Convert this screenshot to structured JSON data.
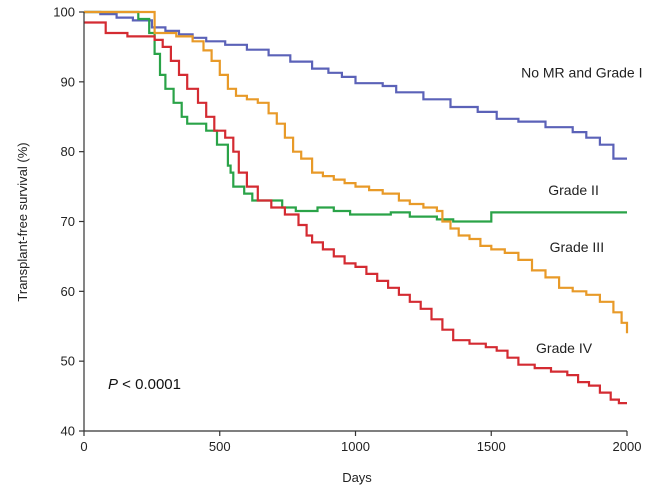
{
  "chart_data": {
    "type": "line",
    "step": true,
    "title": "",
    "xlabel": "Days",
    "ylabel": "Transplant-free survival (%)",
    "xlim": [
      0,
      2000
    ],
    "ylim": [
      40,
      100
    ],
    "xticks": [
      0,
      500,
      1000,
      1500,
      2000
    ],
    "yticks": [
      40,
      50,
      60,
      70,
      80,
      90,
      100
    ],
    "grid": false,
    "legend": "none",
    "annotation": {
      "p_symbol": "P",
      "p_text": " < 0.0001"
    },
    "series": [
      {
        "name": "No MR and Grade I",
        "color": "#5b62b8",
        "label_at": [
          1610,
          90.6
        ],
        "points": [
          [
            0,
            100
          ],
          [
            60,
            99.7
          ],
          [
            120,
            99.2
          ],
          [
            180,
            98.8
          ],
          [
            250,
            97.8
          ],
          [
            300,
            97.3
          ],
          [
            350,
            96.8
          ],
          [
            400,
            96.3
          ],
          [
            450,
            95.8
          ],
          [
            520,
            95.3
          ],
          [
            600,
            94.6
          ],
          [
            680,
            93.8
          ],
          [
            760,
            92.9
          ],
          [
            840,
            91.9
          ],
          [
            900,
            91.3
          ],
          [
            950,
            90.7
          ],
          [
            1000,
            89.8
          ],
          [
            1100,
            89.4
          ],
          [
            1150,
            88.5
          ],
          [
            1250,
            87.5
          ],
          [
            1350,
            86.4
          ],
          [
            1450,
            85.7
          ],
          [
            1520,
            84.7
          ],
          [
            1600,
            84.3
          ],
          [
            1700,
            83.5
          ],
          [
            1800,
            82.8
          ],
          [
            1850,
            82
          ],
          [
            1900,
            81
          ],
          [
            1950,
            79
          ],
          [
            2000,
            79
          ]
        ]
      },
      {
        "name": "Grade II",
        "color": "#2aa348",
        "label_at": [
          1710,
          73.8
        ],
        "points": [
          [
            0,
            100
          ],
          [
            200,
            99
          ],
          [
            240,
            97
          ],
          [
            260,
            94
          ],
          [
            280,
            91
          ],
          [
            300,
            89
          ],
          [
            330,
            87
          ],
          [
            360,
            85
          ],
          [
            380,
            84
          ],
          [
            420,
            84
          ],
          [
            450,
            83
          ],
          [
            490,
            81
          ],
          [
            520,
            81
          ],
          [
            530,
            78
          ],
          [
            540,
            77
          ],
          [
            550,
            75
          ],
          [
            590,
            74
          ],
          [
            620,
            73
          ],
          [
            660,
            73
          ],
          [
            730,
            72
          ],
          [
            780,
            71.5
          ],
          [
            800,
            71.5
          ],
          [
            860,
            72
          ],
          [
            900,
            72
          ],
          [
            920,
            71.5
          ],
          [
            980,
            71
          ],
          [
            1050,
            71
          ],
          [
            1130,
            71.3
          ],
          [
            1200,
            70.7
          ],
          [
            1300,
            70.3
          ],
          [
            1360,
            70
          ],
          [
            1400,
            70
          ],
          [
            1500,
            71.3
          ],
          [
            1580,
            71.3
          ],
          [
            1600,
            71.3
          ],
          [
            1700,
            71.3
          ],
          [
            2000,
            71.3
          ]
        ]
      },
      {
        "name": "Grade III",
        "color": "#e89a28",
        "label_at": [
          1715,
          65.6
        ],
        "points": [
          [
            0,
            100
          ],
          [
            260,
            97
          ],
          [
            340,
            96.5
          ],
          [
            400,
            95.8
          ],
          [
            440,
            94.5
          ],
          [
            470,
            93
          ],
          [
            500,
            91
          ],
          [
            530,
            89
          ],
          [
            560,
            88
          ],
          [
            600,
            87.5
          ],
          [
            640,
            87
          ],
          [
            680,
            85.5
          ],
          [
            710,
            84
          ],
          [
            740,
            82
          ],
          [
            770,
            80
          ],
          [
            800,
            79
          ],
          [
            840,
            77
          ],
          [
            880,
            76.5
          ],
          [
            920,
            76
          ],
          [
            960,
            75.5
          ],
          [
            1000,
            75
          ],
          [
            1050,
            74.5
          ],
          [
            1100,
            74
          ],
          [
            1160,
            73
          ],
          [
            1200,
            72.5
          ],
          [
            1250,
            72
          ],
          [
            1300,
            71.5
          ],
          [
            1320,
            70
          ],
          [
            1350,
            69
          ],
          [
            1380,
            68
          ],
          [
            1420,
            67.5
          ],
          [
            1460,
            66.5
          ],
          [
            1500,
            66
          ],
          [
            1550,
            65.5
          ],
          [
            1600,
            64.5
          ],
          [
            1650,
            63
          ],
          [
            1700,
            62
          ],
          [
            1750,
            60.5
          ],
          [
            1800,
            60
          ],
          [
            1850,
            59.5
          ],
          [
            1900,
            58.5
          ],
          [
            1950,
            57
          ],
          [
            1980,
            55.5
          ],
          [
            2000,
            54
          ]
        ]
      },
      {
        "name": "Grade IV",
        "color": "#d42b32",
        "label_at": [
          1665,
          51.2
        ],
        "points": [
          [
            0,
            98.5
          ],
          [
            80,
            97
          ],
          [
            160,
            96.5
          ],
          [
            260,
            96
          ],
          [
            290,
            95
          ],
          [
            320,
            93
          ],
          [
            350,
            91
          ],
          [
            380,
            89
          ],
          [
            420,
            87
          ],
          [
            450,
            85
          ],
          [
            480,
            83
          ],
          [
            520,
            82
          ],
          [
            550,
            80
          ],
          [
            570,
            77
          ],
          [
            600,
            75
          ],
          [
            640,
            73
          ],
          [
            690,
            72
          ],
          [
            740,
            71
          ],
          [
            790,
            69.5
          ],
          [
            820,
            68
          ],
          [
            840,
            67
          ],
          [
            880,
            66
          ],
          [
            920,
            65
          ],
          [
            960,
            64
          ],
          [
            1000,
            63.5
          ],
          [
            1040,
            62.5
          ],
          [
            1080,
            61.5
          ],
          [
            1120,
            60.5
          ],
          [
            1160,
            59.5
          ],
          [
            1200,
            58.5
          ],
          [
            1240,
            57.5
          ],
          [
            1280,
            56
          ],
          [
            1320,
            54.5
          ],
          [
            1360,
            53
          ],
          [
            1420,
            52.5
          ],
          [
            1480,
            52
          ],
          [
            1520,
            51.5
          ],
          [
            1560,
            50.5
          ],
          [
            1600,
            49.5
          ],
          [
            1660,
            49
          ],
          [
            1720,
            48.5
          ],
          [
            1780,
            48
          ],
          [
            1820,
            47
          ],
          [
            1860,
            46.5
          ],
          [
            1900,
            45.5
          ],
          [
            1940,
            44.5
          ],
          [
            1970,
            44
          ],
          [
            2000,
            44
          ]
        ]
      }
    ]
  }
}
